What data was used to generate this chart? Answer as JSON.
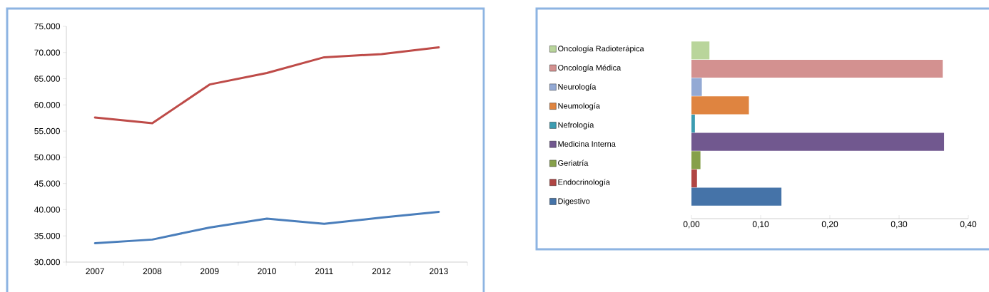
{
  "chart_data": [
    {
      "type": "line",
      "categories": [
        "2007",
        "2008",
        "2009",
        "2010",
        "2011",
        "2012",
        "2013"
      ],
      "series": [
        {
          "color": "#be4b48",
          "values": [
            57600,
            56500,
            63900,
            66100,
            69100,
            69700,
            71000
          ]
        },
        {
          "color": "#4a7ebb",
          "values": [
            33600,
            34300,
            36600,
            38300,
            37300,
            38500,
            39600
          ]
        }
      ],
      "ylim": [
        30000,
        75000
      ],
      "yticks": [
        {
          "value": 30000,
          "label": "30.000"
        },
        {
          "value": 35000,
          "label": "35.000"
        },
        {
          "value": 40000,
          "label": "40.000"
        },
        {
          "value": 45000,
          "label": "45.000"
        },
        {
          "value": 50000,
          "label": "50.000"
        },
        {
          "value": 55000,
          "label": "55.000"
        },
        {
          "value": 60000,
          "label": "60.000"
        },
        {
          "value": 65000,
          "label": "65.000"
        },
        {
          "value": 70000,
          "label": "70.000"
        },
        {
          "value": 75000,
          "label": "75.000"
        }
      ],
      "grid": false,
      "legend": false,
      "marker": "none",
      "line_style": "solid"
    },
    {
      "type": "bar",
      "orientation": "horizontal",
      "stacked": true,
      "categories": [
        null,
        null,
        null,
        null,
        null,
        null,
        null,
        null,
        null
      ],
      "series": [
        {
          "name": "Digestivo",
          "color": "#4573a8",
          "values": [
            null,
            null,
            null,
            null,
            null,
            null,
            null,
            null,
            0.13
          ]
        },
        {
          "name": "Endocrinología",
          "color": "#b04543",
          "values": [
            null,
            null,
            null,
            null,
            null,
            null,
            null,
            0.008,
            null
          ]
        },
        {
          "name": "Geriatría",
          "color": "#86a04a",
          "values": [
            null,
            null,
            null,
            null,
            null,
            null,
            0.013,
            null,
            null
          ]
        },
        {
          "name": "Medicina Interna",
          "color": "#71588f",
          "values": [
            null,
            null,
            null,
            null,
            null,
            0.365,
            null,
            null,
            null
          ]
        },
        {
          "name": "Nefrología",
          "color": "#3c9cb1",
          "values": [
            null,
            null,
            null,
            null,
            0.005,
            null,
            null,
            null,
            null
          ]
        },
        {
          "name": "Neumología",
          "color": "#df8440",
          "values": [
            null,
            null,
            null,
            0.083,
            null,
            null,
            null,
            null,
            null
          ]
        },
        {
          "name": "Neurología",
          "color": "#93a9d4",
          "values": [
            null,
            null,
            0.015,
            null,
            null,
            null,
            null,
            null,
            null
          ]
        },
        {
          "name": "Oncología Médica",
          "color": "#d39190",
          "values": [
            null,
            0.363,
            null,
            null,
            null,
            null,
            null,
            null,
            null
          ]
        },
        {
          "name": "Oncología Radioterápica",
          "color": "#b9d59b",
          "values": [
            0.026,
            null,
            null,
            null,
            null,
            null,
            null,
            null,
            null
          ]
        }
      ],
      "xlim": [
        0,
        0.4
      ],
      "xticks": [
        {
          "value": 0,
          "label": "0,00"
        },
        {
          "value": 0.1,
          "label": "0,10"
        },
        {
          "value": 0.2,
          "label": "0,20"
        },
        {
          "value": 0.3,
          "label": "0,30"
        },
        {
          "value": 0.4,
          "label": "0,40"
        }
      ],
      "grid": false,
      "legend": "left"
    }
  ]
}
